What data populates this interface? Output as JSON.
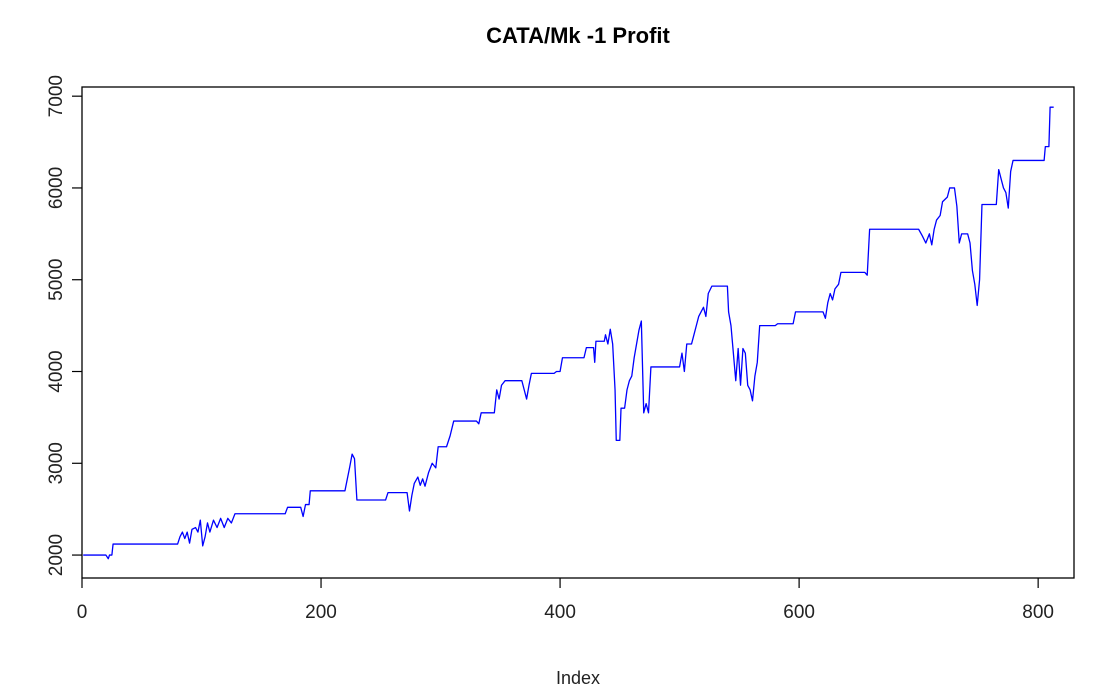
{
  "chart_data": {
    "type": "line",
    "title": "CATA/Mk -1 Profit",
    "xlabel": "Index",
    "ylabel": "",
    "xlim": [
      0,
      830
    ],
    "ylim": [
      1750,
      7100
    ],
    "x_ticks": [
      0,
      200,
      400,
      600,
      800
    ],
    "y_ticks": [
      2000,
      3000,
      4000,
      5000,
      6000,
      7000
    ],
    "grid": false,
    "legend": "none",
    "series": [
      {
        "color": "#0000ff",
        "points": [
          [
            1,
            2000
          ],
          [
            20,
            2000
          ],
          [
            22,
            1960
          ],
          [
            23,
            2000
          ],
          [
            25,
            2000
          ],
          [
            26,
            2120
          ],
          [
            80,
            2120
          ],
          [
            82,
            2200
          ],
          [
            84,
            2250
          ],
          [
            86,
            2180
          ],
          [
            88,
            2250
          ],
          [
            90,
            2130
          ],
          [
            92,
            2280
          ],
          [
            95,
            2300
          ],
          [
            97,
            2250
          ],
          [
            99,
            2380
          ],
          [
            101,
            2100
          ],
          [
            103,
            2200
          ],
          [
            105,
            2350
          ],
          [
            107,
            2250
          ],
          [
            110,
            2380
          ],
          [
            113,
            2300
          ],
          [
            116,
            2400
          ],
          [
            119,
            2300
          ],
          [
            122,
            2400
          ],
          [
            125,
            2350
          ],
          [
            128,
            2450
          ],
          [
            170,
            2450
          ],
          [
            172,
            2520
          ],
          [
            183,
            2520
          ],
          [
            185,
            2420
          ],
          [
            187,
            2550
          ],
          [
            190,
            2550
          ],
          [
            191,
            2700
          ],
          [
            220,
            2700
          ],
          [
            224,
            2960
          ],
          [
            226,
            3100
          ],
          [
            228,
            3050
          ],
          [
            230,
            2600
          ],
          [
            254,
            2600
          ],
          [
            256,
            2680
          ],
          [
            272,
            2680
          ],
          [
            274,
            2480
          ],
          [
            276,
            2650
          ],
          [
            278,
            2780
          ],
          [
            281,
            2850
          ],
          [
            283,
            2760
          ],
          [
            285,
            2830
          ],
          [
            287,
            2750
          ],
          [
            290,
            2900
          ],
          [
            293,
            3000
          ],
          [
            296,
            2950
          ],
          [
            298,
            3180
          ],
          [
            305,
            3180
          ],
          [
            308,
            3300
          ],
          [
            311,
            3460
          ],
          [
            330,
            3460
          ],
          [
            332,
            3430
          ],
          [
            334,
            3550
          ],
          [
            345,
            3550
          ],
          [
            347,
            3800
          ],
          [
            349,
            3700
          ],
          [
            351,
            3850
          ],
          [
            354,
            3900
          ],
          [
            368,
            3900
          ],
          [
            370,
            3800
          ],
          [
            372,
            3700
          ],
          [
            374,
            3850
          ],
          [
            376,
            3980
          ],
          [
            395,
            3980
          ],
          [
            397,
            4000
          ],
          [
            400,
            4000
          ],
          [
            402,
            4150
          ],
          [
            420,
            4150
          ],
          [
            422,
            4260
          ],
          [
            428,
            4260
          ],
          [
            429,
            4100
          ],
          [
            430,
            4330
          ],
          [
            437,
            4330
          ],
          [
            438,
            4400
          ],
          [
            440,
            4300
          ],
          [
            442,
            4460
          ],
          [
            444,
            4300
          ],
          [
            446,
            3800
          ],
          [
            447,
            3250
          ],
          [
            450,
            3250
          ],
          [
            451,
            3600
          ],
          [
            454,
            3600
          ],
          [
            456,
            3800
          ],
          [
            458,
            3900
          ],
          [
            460,
            3950
          ],
          [
            462,
            4150
          ],
          [
            464,
            4300
          ],
          [
            466,
            4450
          ],
          [
            468,
            4550
          ],
          [
            470,
            3550
          ],
          [
            472,
            3650
          ],
          [
            474,
            3550
          ],
          [
            476,
            4050
          ],
          [
            500,
            4050
          ],
          [
            502,
            4200
          ],
          [
            504,
            4000
          ],
          [
            506,
            4300
          ],
          [
            510,
            4300
          ],
          [
            512,
            4400
          ],
          [
            514,
            4500
          ],
          [
            516,
            4600
          ],
          [
            518,
            4650
          ],
          [
            520,
            4700
          ],
          [
            522,
            4600
          ],
          [
            524,
            4850
          ],
          [
            527,
            4930
          ],
          [
            540,
            4930
          ],
          [
            541,
            4650
          ],
          [
            543,
            4500
          ],
          [
            545,
            4200
          ],
          [
            547,
            3900
          ],
          [
            549,
            4250
          ],
          [
            551,
            3850
          ],
          [
            553,
            4250
          ],
          [
            555,
            4200
          ],
          [
            557,
            3850
          ],
          [
            559,
            3800
          ],
          [
            561,
            3680
          ],
          [
            563,
            3950
          ],
          [
            565,
            4100
          ],
          [
            567,
            4500
          ],
          [
            580,
            4500
          ],
          [
            582,
            4520
          ],
          [
            595,
            4520
          ],
          [
            597,
            4650
          ],
          [
            620,
            4650
          ],
          [
            622,
            4580
          ],
          [
            624,
            4750
          ],
          [
            626,
            4850
          ],
          [
            628,
            4780
          ],
          [
            630,
            4900
          ],
          [
            633,
            4950
          ],
          [
            635,
            5080
          ],
          [
            655,
            5080
          ],
          [
            657,
            5050
          ],
          [
            659,
            5550
          ],
          [
            700,
            5550
          ],
          [
            703,
            5480
          ],
          [
            706,
            5400
          ],
          [
            709,
            5500
          ],
          [
            711,
            5380
          ],
          [
            713,
            5550
          ],
          [
            715,
            5650
          ],
          [
            718,
            5700
          ],
          [
            720,
            5850
          ],
          [
            724,
            5900
          ],
          [
            726,
            6000
          ],
          [
            730,
            6000
          ],
          [
            732,
            5800
          ],
          [
            734,
            5400
          ],
          [
            736,
            5500
          ],
          [
            741,
            5500
          ],
          [
            743,
            5400
          ],
          [
            745,
            5100
          ],
          [
            747,
            4950
          ],
          [
            749,
            4720
          ],
          [
            751,
            5000
          ],
          [
            753,
            5820
          ],
          [
            765,
            5820
          ],
          [
            767,
            6200
          ],
          [
            769,
            6100
          ],
          [
            771,
            6000
          ],
          [
            773,
            5950
          ],
          [
            775,
            5780
          ],
          [
            777,
            6180
          ],
          [
            779,
            6300
          ],
          [
            805,
            6300
          ],
          [
            806,
            6450
          ],
          [
            809,
            6450
          ],
          [
            810,
            6880
          ],
          [
            813,
            6880
          ]
        ]
      }
    ]
  }
}
